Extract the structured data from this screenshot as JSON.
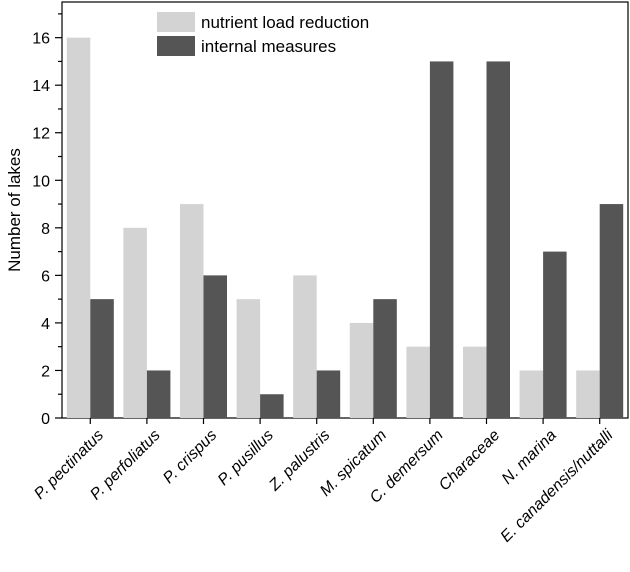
{
  "chart_data": {
    "type": "bar",
    "categories": [
      "P. pectinatus",
      "P. perfoliatus",
      "P. crispus",
      "P. pusillus",
      "Z. palustris",
      "M. spicatum",
      "C. demersum",
      "Characeae",
      "N. marina",
      "E. canadensis/nuttalli"
    ],
    "series": [
      {
        "name": "nutrient load reduction",
        "color": "#d3d3d3",
        "values": [
          16,
          8,
          9,
          5,
          6,
          4,
          3,
          3,
          2,
          2
        ]
      },
      {
        "name": "internal measures",
        "color": "#555555",
        "values": [
          5,
          2,
          6,
          1,
          2,
          5,
          15,
          15,
          7,
          9
        ]
      }
    ],
    "title": "",
    "xlabel": "",
    "ylabel": "Number of lakes",
    "ylim": [
      0,
      17.5
    ],
    "yticks": [
      0,
      2,
      4,
      6,
      8,
      10,
      12,
      14,
      16
    ],
    "grid": false,
    "legend_position": "top-center"
  }
}
